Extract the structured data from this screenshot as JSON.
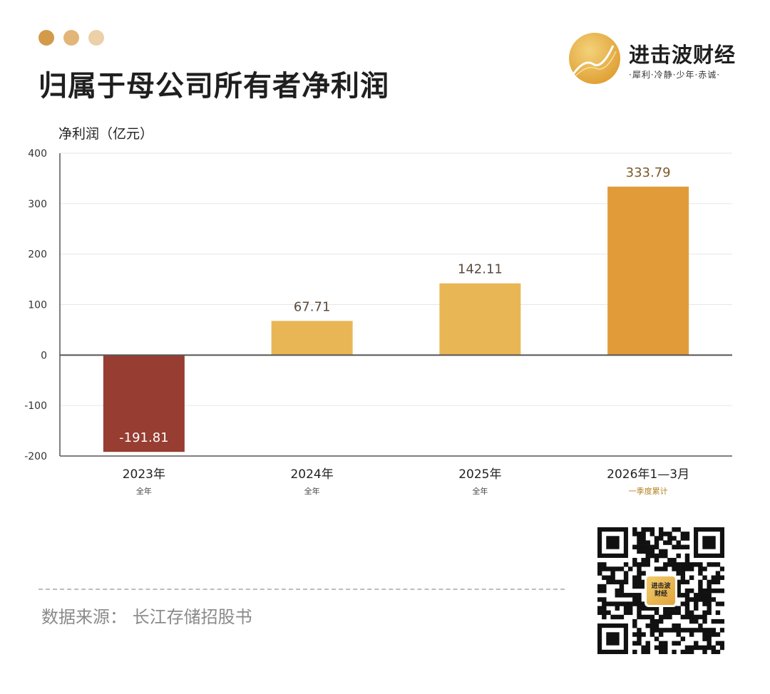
{
  "header": {
    "title": "归属于母公司所有者净利润",
    "dot_colors": [
      "#d39a4a",
      "#e2b578",
      "#ebd0a8"
    ]
  },
  "logo": {
    "name": "进击波财经",
    "slogan": "·犀利·冷静·少年·赤诚·",
    "icon": "golden-wave-circle-icon",
    "color": "#e8b54a"
  },
  "footer": {
    "source": "数据来源：  长江存储招股书"
  },
  "qr": {
    "icon": "qr-code-icon",
    "center_label": "进击波\n财经"
  },
  "chart_data": {
    "type": "bar",
    "ylabel": "净利润（亿元）",
    "ylim": [
      -200,
      400
    ],
    "yticks": [
      -200,
      -100,
      0,
      100,
      200,
      300,
      400
    ],
    "ytick_labels": [
      "-200",
      "-100",
      "0",
      "100",
      "200",
      "300",
      "400"
    ],
    "grid": true,
    "categories": [
      "2023年",
      "2024年",
      "2025年",
      "2026年1—3月"
    ],
    "sublabels": [
      "全年",
      "全年",
      "全年",
      "一季度累计"
    ],
    "values": [
      -191.81,
      67.71,
      142.11,
      333.79
    ],
    "value_labels": [
      "-191.81",
      "67.71",
      "142.11",
      "333.79"
    ],
    "bar_colors": [
      "#973d32",
      "#e9b655",
      "#e9b655",
      "#e19c39"
    ],
    "sublabel_colors": [
      "#444444",
      "#444444",
      "#444444",
      "#b48324"
    ],
    "value_label_colors": [
      "#ffffff",
      "#5a4a3a",
      "#5a4a3a",
      "#7a5a2a"
    ]
  }
}
